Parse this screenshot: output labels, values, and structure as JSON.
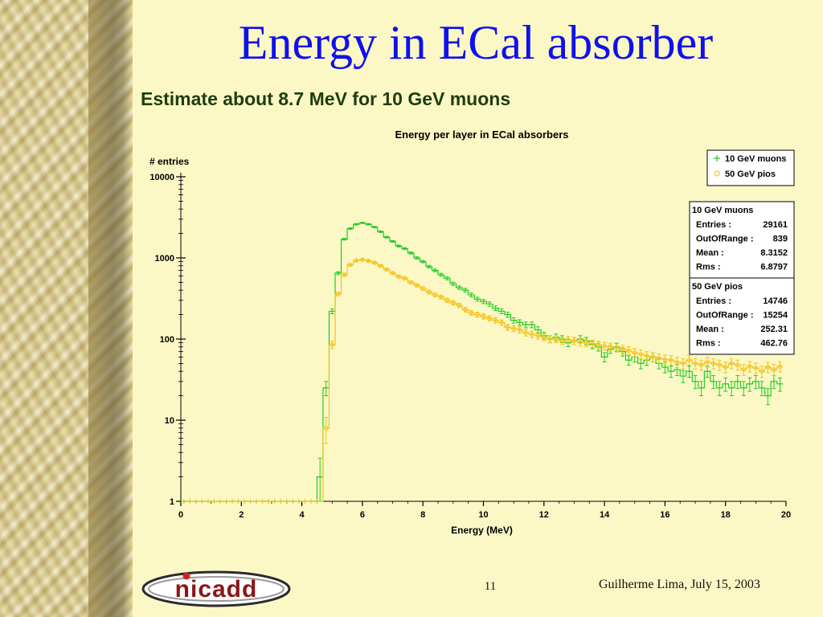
{
  "slide": {
    "title": "Energy in ECal absorber",
    "subtitle": "Estimate about  8.7 MeV for 10 GeV muons",
    "page_number": "11",
    "footer": "Guilherme Lima, July 15, 2003",
    "logo_text": "nicadd"
  },
  "colors": {
    "muons": "#22cc22",
    "pios": "#f5c21b",
    "title": "#1010ee"
  },
  "chart_data": {
    "type": "line",
    "title": "Energy per layer in ECal absorbers",
    "xlabel": "Energy (MeV)",
    "ylabel": "# entries",
    "xlim": [
      0,
      20
    ],
    "ylim": [
      1,
      10000
    ],
    "yscale": "log",
    "xticks": [
      0,
      2,
      4,
      6,
      8,
      10,
      12,
      14,
      16,
      18,
      20
    ],
    "yticks": [
      1,
      10,
      100,
      1000,
      10000
    ],
    "ytick_labels": [
      "1",
      "10",
      "100",
      "1000",
      "10000"
    ],
    "legend": {
      "placement": "top-right",
      "entries": [
        {
          "name": "10 GeV muons",
          "marker": "+"
        },
        {
          "name": "50 GeV pios",
          "marker": "o"
        }
      ]
    },
    "stats": [
      {
        "name": "10 GeV muons",
        "rows": [
          {
            "label": "Entries :",
            "value": "29161"
          },
          {
            "label": "OutOfRange :",
            "value": "839"
          },
          {
            "label": "Mean :",
            "value": "8.3152"
          },
          {
            "label": "Rms :",
            "value": "6.8797"
          }
        ]
      },
      {
        "name": "50 GeV pios",
        "rows": [
          {
            "label": "Entries :",
            "value": "14746"
          },
          {
            "label": "OutOfRange :",
            "value": "15254"
          },
          {
            "label": "Mean :",
            "value": "252.31"
          },
          {
            "label": "Rms :",
            "value": "462.76"
          }
        ]
      }
    ],
    "bin_width": 0.2,
    "series": [
      {
        "name": "10 GeV muons",
        "marker": "+",
        "x": [
          4.6,
          4.8,
          5.0,
          5.2,
          5.4,
          5.6,
          5.8,
          6.0,
          6.2,
          6.4,
          6.6,
          6.8,
          7.0,
          7.2,
          7.4,
          7.6,
          7.8,
          8.0,
          8.2,
          8.4,
          8.6,
          8.8,
          9.0,
          9.2,
          9.4,
          9.6,
          9.8,
          10.0,
          10.2,
          10.4,
          10.6,
          10.8,
          11.0,
          11.2,
          11.4,
          11.6,
          11.8,
          12.0,
          12.2,
          12.4,
          12.6,
          12.8,
          13.0,
          13.2,
          13.4,
          13.6,
          13.8,
          14.0,
          14.2,
          14.4,
          14.6,
          14.8,
          15.0,
          15.2,
          15.4,
          15.6,
          15.8,
          16.0,
          16.2,
          16.4,
          16.6,
          16.8,
          17.0,
          17.2,
          17.4,
          17.6,
          17.8,
          18.0,
          18.2,
          18.4,
          18.6,
          18.8,
          19.0,
          19.2,
          19.4,
          19.6,
          19.8
        ],
        "y": [
          2,
          25,
          220,
          650,
          1700,
          2300,
          2600,
          2700,
          2600,
          2400,
          2100,
          1800,
          1600,
          1400,
          1300,
          1150,
          1000,
          900,
          780,
          700,
          620,
          560,
          480,
          430,
          400,
          350,
          310,
          290,
          270,
          240,
          220,
          200,
          170,
          160,
          150,
          150,
          130,
          110,
          100,
          105,
          100,
          90,
          95,
          100,
          95,
          85,
          80,
          60,
          75,
          80,
          70,
          55,
          60,
          50,
          55,
          60,
          50,
          45,
          40,
          42,
          35,
          40,
          30,
          25,
          40,
          30,
          25,
          28,
          25,
          30,
          25,
          28,
          30,
          25,
          20,
          30,
          28
        ]
      },
      {
        "name": "50 GeV pios",
        "marker": "o",
        "x": [
          4.8,
          5.0,
          5.2,
          5.4,
          5.6,
          5.8,
          6.0,
          6.2,
          6.4,
          6.6,
          6.8,
          7.0,
          7.2,
          7.4,
          7.6,
          7.8,
          8.0,
          8.2,
          8.4,
          8.6,
          8.8,
          9.0,
          9.2,
          9.4,
          9.6,
          9.8,
          10.0,
          10.2,
          10.4,
          10.6,
          10.8,
          11.0,
          11.2,
          11.4,
          11.6,
          11.8,
          12.0,
          12.2,
          12.4,
          12.6,
          12.8,
          13.0,
          13.2,
          13.4,
          13.6,
          13.8,
          14.0,
          14.2,
          14.4,
          14.6,
          14.8,
          15.0,
          15.2,
          15.4,
          15.6,
          15.8,
          16.0,
          16.2,
          16.4,
          16.6,
          16.8,
          17.0,
          17.2,
          17.4,
          17.6,
          17.8,
          18.0,
          18.2,
          18.4,
          18.6,
          18.8,
          19.0,
          19.2,
          19.4,
          19.6,
          19.8
        ],
        "y": [
          8,
          85,
          360,
          620,
          820,
          930,
          950,
          920,
          870,
          800,
          720,
          650,
          590,
          560,
          500,
          460,
          420,
          380,
          350,
          330,
          300,
          280,
          260,
          230,
          210,
          200,
          190,
          180,
          170,
          160,
          140,
          135,
          130,
          120,
          115,
          110,
          105,
          100,
          100,
          95,
          98,
          95,
          92,
          90,
          88,
          85,
          82,
          80,
          78,
          75,
          72,
          68,
          65,
          62,
          60,
          58,
          56,
          55,
          52,
          50,
          55,
          50,
          48,
          52,
          50,
          48,
          45,
          50,
          48,
          42,
          46,
          44,
          40,
          45,
          42,
          46
        ]
      }
    ]
  }
}
